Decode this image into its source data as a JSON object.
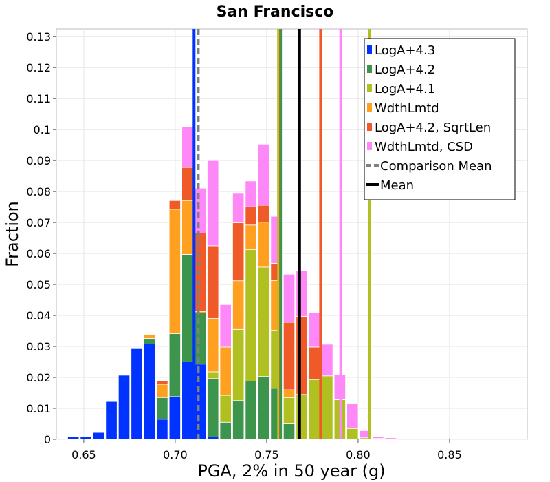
{
  "chart_data": {
    "type": "bar",
    "title": "San Francisco",
    "xlabel": "PGA, 2% in 50 year (g)",
    "ylabel": "Fraction",
    "xlim": [
      0.635,
      0.8925
    ],
    "ylim": [
      0,
      0.1325
    ],
    "xticks": [
      0.65,
      0.7,
      0.75,
      0.8,
      0.85
    ],
    "xtick_labels": [
      "0.65",
      "0.70",
      "0.75",
      "0.80",
      "0.85"
    ],
    "yticks": [
      0,
      0.01,
      0.02,
      0.03,
      0.04,
      0.05,
      0.06,
      0.07,
      0.08,
      0.09,
      0.1,
      0.11,
      0.12,
      0.13
    ],
    "ytick_labels": [
      "0",
      "0.01",
      "0.02",
      "0.03",
      "0.04",
      "0.05",
      "0.06",
      "0.07",
      "0.08",
      "0.09",
      "0.1",
      "0.11",
      "0.12",
      "0.13"
    ],
    "grid": true,
    "legend_position": "top-right",
    "bin_width": 0.00694,
    "bin_start": 0.6408,
    "series": [
      {
        "name": "LogA+4.3",
        "color": "#0033ff",
        "values": [
          0.0008,
          0.0008,
          0.0022,
          0.0122,
          0.0207,
          0.0293,
          0.0308,
          0.0065,
          0.0138,
          0.025,
          0.0243,
          0.0008,
          0,
          0,
          0,
          0,
          0,
          0,
          0,
          0,
          0,
          0,
          0,
          0,
          0,
          0,
          0,
          0,
          0,
          0,
          0,
          0,
          0,
          0,
          0,
          0,
          0
        ]
      },
      {
        "name": "LogA+4.2",
        "color": "#3d944d",
        "values": [
          0,
          0,
          0,
          0,
          0,
          0.0003,
          0.0018,
          0.007,
          0.0203,
          0.0347,
          0.0165,
          0.0188,
          0.0055,
          0.0125,
          0.0188,
          0.0203,
          0.0165,
          0.005,
          0,
          0,
          0,
          0,
          0,
          0,
          0,
          0,
          0,
          0,
          0,
          0,
          0,
          0,
          0,
          0,
          0,
          0,
          0
        ]
      },
      {
        "name": "LogA+4.1",
        "color": "#b0c020",
        "values": [
          0,
          0,
          0,
          0,
          0,
          0,
          0,
          0,
          0,
          0,
          0,
          0.0022,
          0.0087,
          0.023,
          0.0425,
          0.0353,
          0.0187,
          0.0085,
          0.0145,
          0.0193,
          0.0205,
          0.0128,
          0.0035,
          0.0005,
          0.0003,
          0,
          0,
          0,
          0,
          0,
          0,
          0,
          0,
          0,
          0,
          0,
          0
        ]
      },
      {
        "name": "WdthLmtd",
        "color": "#ffa020",
        "values": [
          0,
          0,
          0,
          0,
          0,
          0,
          0.0013,
          0.0043,
          0.0402,
          0.0174,
          0.0005,
          0.0172,
          0.0156,
          0.0157,
          0.0079,
          0.0145,
          0.0161,
          0.0025,
          0,
          0,
          0,
          0,
          0,
          0,
          0,
          0,
          0,
          0,
          0,
          0,
          0,
          0,
          0,
          0,
          0,
          0,
          0
        ]
      },
      {
        "name": "LogA+4.2, SqrtLen",
        "color": "#f05a28",
        "values": [
          0,
          0,
          0,
          0,
          0,
          0,
          0,
          0.001,
          0.0028,
          0.0107,
          0.0253,
          0.0235,
          0,
          0.0187,
          0.0059,
          0.0055,
          0.0055,
          0.0218,
          0.0252,
          0.0105,
          0,
          0,
          0,
          0,
          0,
          0,
          0,
          0,
          0,
          0,
          0,
          0,
          0,
          0,
          0,
          0,
          0
        ]
      },
      {
        "name": "WdthLmtd, CSD",
        "color": "#ff88f8",
        "values": [
          0,
          0,
          0,
          0,
          0,
          0,
          0,
          0,
          0.0003,
          0.013,
          0.0145,
          0.0275,
          0.0137,
          0.0095,
          0.0083,
          0.0197,
          0.0152,
          0.0155,
          0.0148,
          0.011,
          0.0102,
          0.0082,
          0.008,
          0.0023,
          0.0005,
          0.0005,
          0,
          0,
          0,
          0,
          0,
          0,
          0,
          0,
          0,
          0,
          0
        ]
      }
    ],
    "vertical_lines": [
      {
        "series": "LogA+4.3",
        "x": 0.7103,
        "color": "#0033ff",
        "style": "solid"
      },
      {
        "series": "Comparison Mean",
        "x": 0.7126,
        "color": "#808080",
        "style": "dashed"
      },
      {
        "series": "LogA+4.1",
        "x": 0.7565,
        "color": "#b0c020",
        "style": "solid"
      },
      {
        "series": "WdthLmtd",
        "x": 0.7568,
        "color": "#ffa020",
        "style": "solid"
      },
      {
        "series": "LogA+4.2",
        "x": 0.7576,
        "color": "#3d944d",
        "style": "solid"
      },
      {
        "series": "Mean",
        "x": 0.768,
        "color": "#000000",
        "style": "solid"
      },
      {
        "series": "LogA+4.2, SqrtLen",
        "x": 0.7795,
        "color": "#f05a28",
        "style": "solid"
      },
      {
        "series": "WdthLmtd, CSD",
        "x": 0.7905,
        "color": "#ff88f8",
        "style": "solid"
      },
      {
        "series": "LogA+4.1",
        "x": 0.8062,
        "color": "#b0c020",
        "style": "solid"
      }
    ],
    "legend": [
      {
        "label": "LogA+4.3",
        "color": "#0033ff",
        "kind": "box"
      },
      {
        "label": "LogA+4.2",
        "color": "#3d944d",
        "kind": "box"
      },
      {
        "label": "LogA+4.1",
        "color": "#b0c020",
        "kind": "box"
      },
      {
        "label": "WdthLmtd",
        "color": "#ffa020",
        "kind": "box"
      },
      {
        "label": "LogA+4.2, SqrtLen",
        "color": "#f05a28",
        "kind": "box"
      },
      {
        "label": "WdthLmtd, CSD",
        "color": "#ff88f8",
        "kind": "box"
      },
      {
        "label": "Comparison Mean",
        "color": "#808080",
        "kind": "dashed"
      },
      {
        "label": "Mean",
        "color": "#000000",
        "kind": "line"
      }
    ]
  }
}
